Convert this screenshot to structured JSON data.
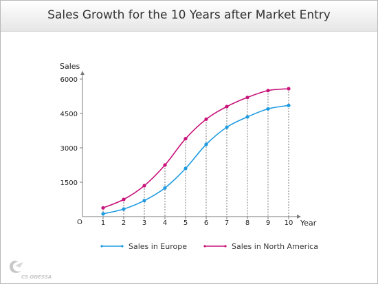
{
  "chart_data": {
    "type": "line",
    "title": "Sales Growth for the 10 Years after Market Entry",
    "xlabel": "Year",
    "ylabel": "Sales",
    "origin_label": "O",
    "x": [
      1,
      2,
      3,
      4,
      5,
      6,
      7,
      8,
      9,
      10
    ],
    "ylim": [
      0,
      6000
    ],
    "yticks": [
      1500,
      3000,
      4500,
      6000
    ],
    "grid": "vertical drop lines from upper series points",
    "legend_position": "bottom",
    "series": [
      {
        "name": "Sales in Europe",
        "color": "#1e9be0",
        "values": [
          120,
          330,
          700,
          1250,
          2100,
          3150,
          3900,
          4350,
          4700,
          4850
        ]
      },
      {
        "name": "Sales in North America",
        "color": "#c8137a",
        "values": [
          380,
          750,
          1350,
          2250,
          3400,
          4250,
          4800,
          5200,
          5500,
          5580
        ]
      }
    ]
  },
  "watermark": "CS ODESSA"
}
